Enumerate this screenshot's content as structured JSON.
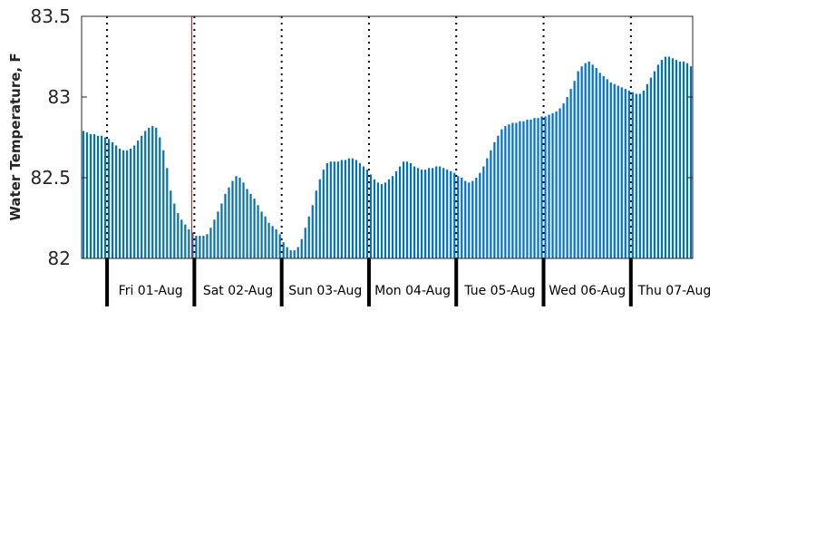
{
  "chart_data": {
    "type": "bar",
    "title": "",
    "ylabel": "Water Temperature, F",
    "xlabel": "",
    "ylim": [
      82,
      83.5
    ],
    "yticks": [
      82,
      82.5,
      83,
      83.5
    ],
    "ytick_labels": [
      "82",
      "82.5",
      "83",
      "83.5"
    ],
    "bar_color": "#0072bd",
    "hours_start": -7,
    "hours_end": 161,
    "day_boundaries_hours": [
      0,
      24,
      48,
      72,
      96,
      120,
      144
    ],
    "day_labels": [
      "Fri 01-Aug",
      "Sat 02-Aug",
      "Sun 03-Aug",
      "Mon 04-Aug",
      "Tue 05-Aug",
      "Wed 06-Aug",
      "Thu 07-Aug"
    ],
    "day_line_style": "dotted",
    "marker_hour": 23.3,
    "marker_color": "#ff0000",
    "grid": false,
    "series": [
      {
        "values": [
          82.79,
          82.78,
          82.77,
          82.77,
          82.76,
          82.76,
          82.75,
          82.74,
          82.72,
          82.7,
          82.68,
          82.67,
          82.67,
          82.68,
          82.7,
          82.73,
          82.76,
          82.79,
          82.81,
          82.82,
          82.81,
          82.75,
          82.67,
          82.56,
          82.42,
          82.34,
          82.28,
          82.24,
          82.21,
          82.18,
          82.16,
          82.14,
          82.14,
          82.14,
          82.15,
          82.19,
          82.24,
          82.29,
          82.34,
          82.4,
          82.44,
          82.48,
          82.51,
          82.5,
          82.47,
          82.43,
          82.4,
          82.37,
          82.33,
          82.29,
          82.26,
          82.22,
          82.2,
          82.18,
          82.15,
          82.1,
          82.07,
          82.05,
          82.05,
          82.07,
          82.12,
          82.19,
          82.26,
          82.33,
          82.42,
          82.49,
          82.55,
          82.59,
          82.6,
          82.6,
          82.6,
          82.61,
          82.61,
          82.62,
          82.62,
          82.61,
          82.59,
          82.57,
          82.55,
          82.52,
          82.49,
          82.47,
          82.46,
          82.47,
          82.49,
          82.51,
          82.54,
          82.57,
          82.6,
          82.6,
          82.59,
          82.57,
          82.56,
          82.55,
          82.55,
          82.56,
          82.56,
          82.57,
          82.57,
          82.56,
          82.55,
          82.54,
          82.53,
          82.51,
          82.5,
          82.48,
          82.47,
          82.48,
          82.5,
          82.53,
          82.57,
          82.62,
          82.67,
          82.72,
          82.76,
          82.8,
          82.82,
          82.83,
          82.84,
          82.84,
          82.85,
          82.85,
          82.86,
          82.86,
          82.87,
          82.87,
          82.88,
          82.88,
          82.89,
          82.9,
          82.91,
          82.93,
          82.96,
          83.0,
          83.05,
          83.1,
          83.16,
          83.19,
          83.21,
          83.22,
          83.2,
          83.18,
          83.15,
          83.13,
          83.11,
          83.09,
          83.08,
          83.07,
          83.06,
          83.05,
          83.04,
          83.03,
          83.02,
          83.02,
          83.04,
          83.08,
          83.12,
          83.16,
          83.2,
          83.23,
          83.25,
          83.25,
          83.24,
          83.23,
          83.22,
          83.22,
          83.21,
          83.19
        ]
      }
    ]
  }
}
